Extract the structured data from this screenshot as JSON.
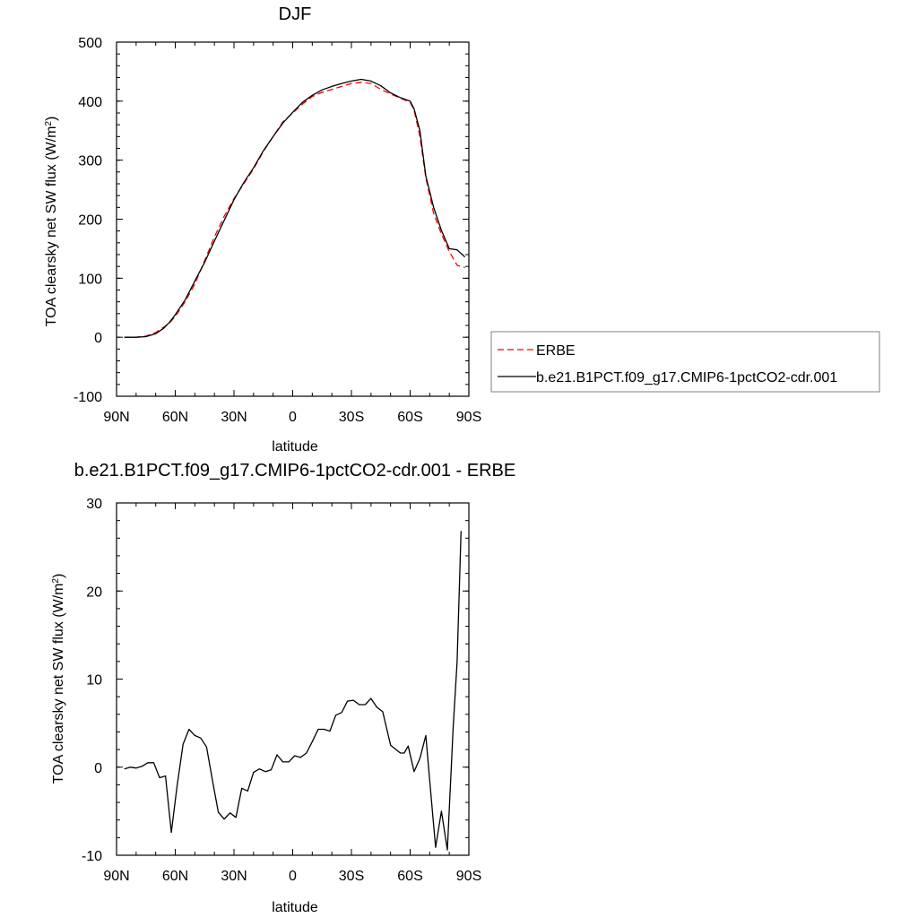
{
  "chart_data": [
    {
      "type": "line",
      "title": "DJF",
      "xlabel": "latitude",
      "ylabel": "TOA clearsky net SW flux (W/m",
      "ylabel_sup": "2",
      "ylabel_close": ")",
      "xlim": [
        90,
        -90
      ],
      "ylim": [
        -100,
        500
      ],
      "xticks": [
        {
          "value": 90,
          "label": "90N"
        },
        {
          "value": 60,
          "label": "60N"
        },
        {
          "value": 30,
          "label": "30N"
        },
        {
          "value": 0,
          "label": "0"
        },
        {
          "value": -30,
          "label": "30S"
        },
        {
          "value": -60,
          "label": "60S"
        },
        {
          "value": -90,
          "label": "90S"
        }
      ],
      "yticks": [
        {
          "value": 500,
          "label": "500"
        },
        {
          "value": 400,
          "label": "400"
        },
        {
          "value": 300,
          "label": "300"
        },
        {
          "value": 200,
          "label": "200"
        },
        {
          "value": 100,
          "label": "100"
        },
        {
          "value": 0,
          "label": "0"
        },
        {
          "value": -100,
          "label": "-100"
        }
      ],
      "legend_position": "right",
      "series": [
        {
          "name": "ERBE",
          "color": "#ff0000",
          "dash": "dashed",
          "x": [
            86,
            80,
            75,
            70,
            66,
            63,
            60,
            55,
            50,
            45,
            40,
            35,
            30,
            25,
            20,
            15,
            10,
            5,
            0,
            -5,
            -10,
            -15,
            -20,
            -25,
            -30,
            -35,
            -40,
            -45,
            -50,
            -55,
            -60,
            -62,
            -65,
            -68,
            -72,
            -76,
            -80,
            -84,
            -88
          ],
          "y": [
            0,
            0,
            2,
            8,
            17,
            24,
            35,
            60,
            90,
            130,
            170,
            205,
            235,
            260,
            285,
            315,
            340,
            365,
            380,
            395,
            408,
            415,
            420,
            425,
            430,
            432,
            430,
            420,
            412,
            405,
            398,
            385,
            340,
            270,
            210,
            175,
            145,
            122,
            118
          ]
        },
        {
          "name": "b.e21.B1PCT.f09_g17.CMIP6-1pctCO2-cdr.001",
          "color": "#000000",
          "dash": "solid",
          "x": [
            86,
            80,
            75,
            70,
            66,
            63,
            60,
            55,
            50,
            45,
            40,
            35,
            30,
            25,
            20,
            15,
            10,
            5,
            0,
            -5,
            -10,
            -15,
            -20,
            -25,
            -30,
            -35,
            -40,
            -45,
            -50,
            -55,
            -60,
            -62,
            -65,
            -68,
            -72,
            -76,
            -80,
            -84,
            -88
          ],
          "y": [
            0,
            0,
            1,
            6,
            15,
            25,
            38,
            63,
            95,
            127,
            163,
            198,
            233,
            262,
            287,
            316,
            340,
            363,
            381,
            398,
            410,
            419,
            425,
            430,
            434,
            437,
            434,
            426,
            414,
            406,
            400,
            387,
            350,
            273,
            220,
            181,
            150,
            148,
            136
          ]
        }
      ]
    },
    {
      "type": "line",
      "title": "b.e21.B1PCT.f09_g17.CMIP6-1pctCO2-cdr.001 - ERBE",
      "xlabel": "latitude",
      "ylabel": "TOA clearsky net SW flux (W/m",
      "ylabel_sup": "2",
      "ylabel_close": ")",
      "xlim": [
        90,
        -90
      ],
      "ylim": [
        -10,
        30
      ],
      "xticks": [
        {
          "value": 90,
          "label": "90N"
        },
        {
          "value": 60,
          "label": "60N"
        },
        {
          "value": 30,
          "label": "30N"
        },
        {
          "value": 0,
          "label": "0"
        },
        {
          "value": -30,
          "label": "30S"
        },
        {
          "value": -60,
          "label": "60S"
        },
        {
          "value": -90,
          "label": "90S"
        }
      ],
      "yticks": [
        {
          "value": 30,
          "label": "30"
        },
        {
          "value": 20,
          "label": "20"
        },
        {
          "value": 10,
          "label": "10"
        },
        {
          "value": 0,
          "label": "0"
        },
        {
          "value": -10,
          "label": "-10"
        }
      ],
      "series": [
        {
          "color": "#000000",
          "dash": "solid",
          "x": [
            86,
            83,
            80,
            77,
            74,
            71,
            68,
            65,
            62,
            59,
            56,
            53,
            50,
            47,
            44,
            41,
            38,
            35,
            32,
            29,
            26,
            23,
            20,
            17,
            14,
            11,
            8,
            5,
            2,
            -1,
            -4,
            -7,
            -10,
            -13,
            -16,
            -19,
            -22,
            -25,
            -28,
            -31,
            -34,
            -37,
            -40,
            -43,
            -46,
            -50,
            -55,
            -57,
            -59,
            -62,
            -65,
            -68,
            -70,
            -73,
            -76,
            -79,
            -82,
            -84,
            -86
          ],
          "y": [
            -0.2,
            0,
            -0.1,
            0.1,
            0.5,
            0.5,
            -1.2,
            -1,
            -7.4,
            -2,
            2.6,
            4.3,
            3.6,
            3.3,
            2.3,
            -1.5,
            -5.1,
            -5.9,
            -5.2,
            -5.7,
            -2.4,
            -2.7,
            -0.6,
            -0.2,
            -0.5,
            -0.3,
            1.4,
            0.6,
            0.6,
            1.3,
            1.1,
            1.6,
            2.9,
            4.3,
            4.3,
            4.1,
            5.9,
            6.2,
            7.5,
            7.6,
            7.1,
            7.1,
            7.8,
            6.8,
            6.3,
            2.5,
            1.6,
            1.6,
            2.4,
            -0.5,
            1,
            3.6,
            -1.5,
            -9.1,
            -5,
            -9.4,
            4.5,
            12,
            26.8
          ]
        }
      ]
    }
  ],
  "colors": {
    "erbe": "#ff0000",
    "model": "#000000",
    "frame": "#000000",
    "legend_border": "#808080"
  }
}
